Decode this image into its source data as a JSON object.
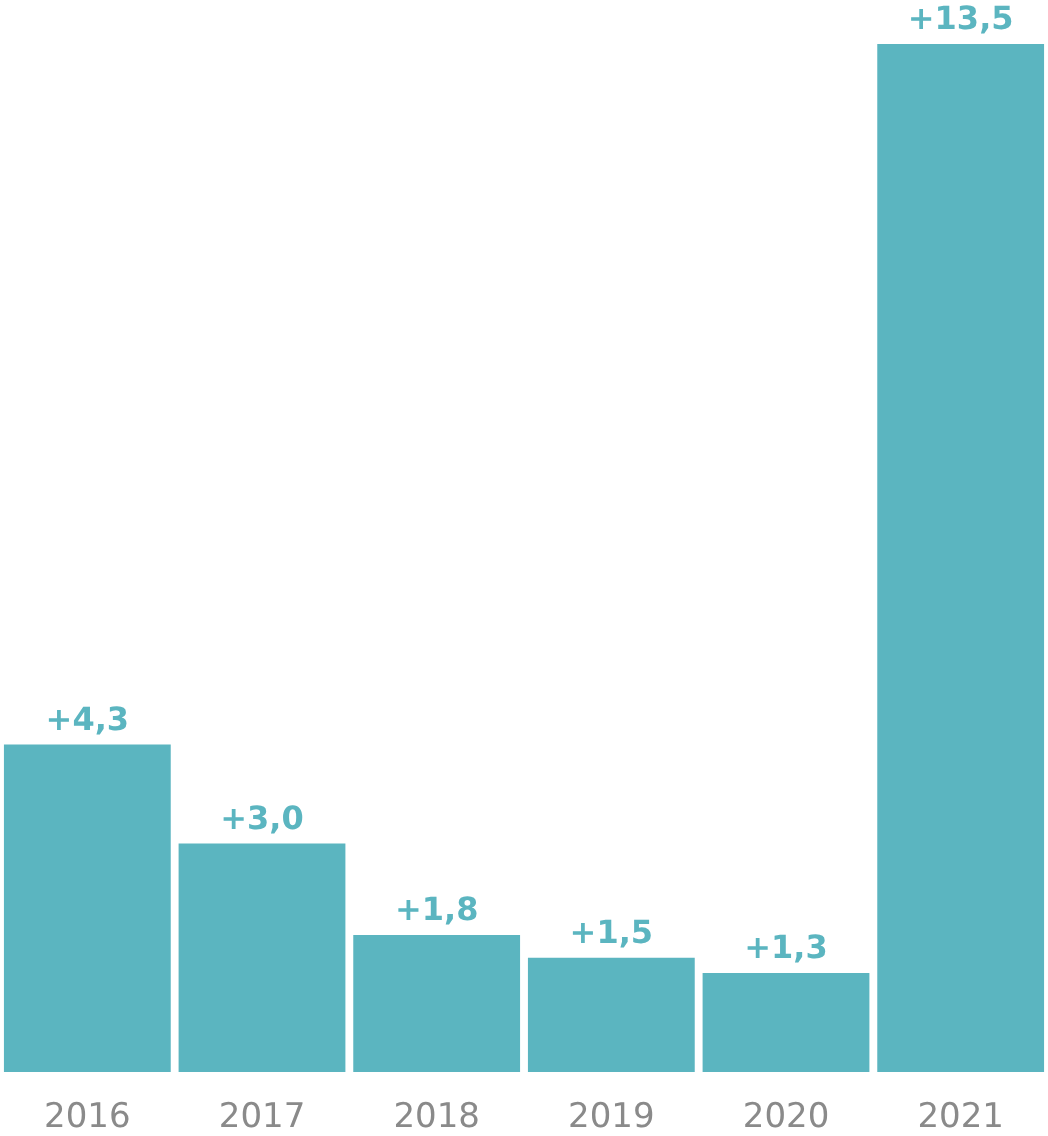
{
  "chart_data": {
    "type": "bar",
    "categories": [
      "2016",
      "2017",
      "2018",
      "2019",
      "2020",
      "2021"
    ],
    "values": [
      4.3,
      3.0,
      1.8,
      1.5,
      1.3,
      13.5
    ],
    "value_labels": [
      "+4,3",
      "+3,0",
      "+1,8",
      "+1,5",
      "+1,3",
      "+13,5"
    ],
    "color": "#5bb5c0"
  }
}
